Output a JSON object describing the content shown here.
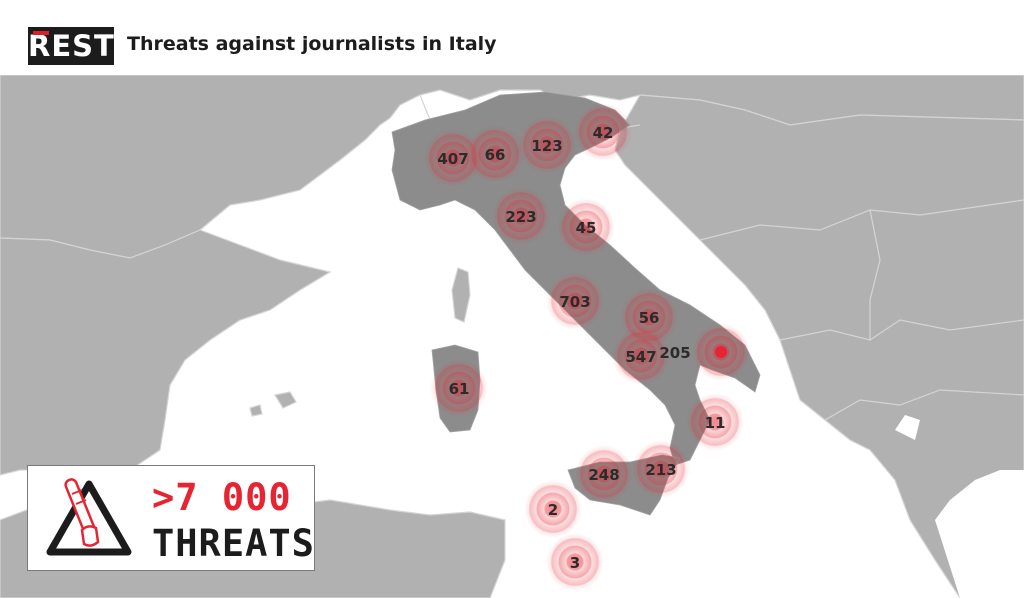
{
  "header": {
    "logo": "REST",
    "title": "Threats against journalists in Italy"
  },
  "markers": [
    {
      "label": "407"
    },
    {
      "label": "66"
    },
    {
      "label": "123"
    },
    {
      "label": "42"
    },
    {
      "label": "223"
    },
    {
      "label": "45"
    },
    {
      "label": "703"
    },
    {
      "label": "56"
    },
    {
      "label": "547"
    },
    {
      "label": "205"
    },
    {
      "label": "61"
    },
    {
      "label": "11"
    },
    {
      "label": "248"
    },
    {
      "label": "213"
    },
    {
      "label": "2"
    },
    {
      "label": "3"
    }
  ],
  "legend": {
    "count": ">7 000",
    "label": "THREATS",
    "icon": "baton-warning-icon"
  },
  "colors": {
    "accent": "#e52531",
    "italy": "#8c8c8c",
    "land": "#b1b1b1",
    "sea": "#ffffff",
    "border": "#d4d4d4"
  }
}
